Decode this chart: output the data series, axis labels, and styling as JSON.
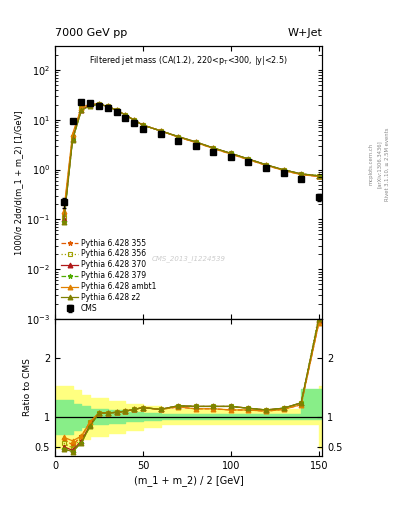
{
  "title_top": "7000 GeV pp",
  "title_right": "W+Jet",
  "plot_title": "Filtered jet mass (CA(1.2), 220<p$_T$<300, |y|<2.5)",
  "xlabel": "(m_1 + m_2) / 2 [GeV]",
  "ylabel_main": "1000/σ 2dσ/d(m_1 + m_2) [1/GeV]",
  "ylabel_ratio": "Ratio to CMS",
  "watermark": "CMS_2013_I1224539",
  "right_label": "Rivet 3.1.10, ≥ 2.5M events",
  "arxiv_label": "[arXiv:1306.3436]",
  "mcplots_label": "mcplots.cern.ch",
  "x_cms": [
    5,
    10,
    15,
    20,
    25,
    30,
    35,
    40,
    45,
    50,
    60,
    70,
    80,
    90,
    100,
    110,
    120,
    130,
    140,
    150
  ],
  "y_cms": [
    0.22,
    9.5,
    23,
    22,
    19,
    17,
    14,
    11,
    8.5,
    6.5,
    5.2,
    3.8,
    3.0,
    2.3,
    1.8,
    1.4,
    1.1,
    0.85,
    0.65,
    0.28
  ],
  "y_cms_err": [
    0.05,
    0.8,
    1.5,
    1.4,
    1.2,
    1.0,
    0.9,
    0.7,
    0.6,
    0.5,
    0.4,
    0.3,
    0.25,
    0.2,
    0.16,
    0.13,
    0.1,
    0.08,
    0.07,
    0.05
  ],
  "x_mc": [
    5,
    10,
    15,
    20,
    25,
    30,
    35,
    40,
    45,
    50,
    60,
    70,
    80,
    90,
    100,
    110,
    120,
    130,
    140,
    150
  ],
  "y_355": [
    0.13,
    4.8,
    17.5,
    20.5,
    20.5,
    18.5,
    15.5,
    12.5,
    9.8,
    7.8,
    6.0,
    4.5,
    3.5,
    2.65,
    2.05,
    1.58,
    1.22,
    0.96,
    0.79,
    0.73
  ],
  "y_356": [
    0.11,
    4.5,
    17.0,
    20.5,
    20.5,
    18.5,
    15.5,
    12.5,
    9.8,
    7.8,
    6.0,
    4.6,
    3.6,
    2.72,
    2.12,
    1.63,
    1.25,
    0.99,
    0.82,
    0.76
  ],
  "y_370": [
    0.1,
    4.2,
    16.0,
    19.5,
    20.5,
    18.5,
    15.5,
    12.5,
    9.8,
    7.8,
    6.0,
    4.6,
    3.6,
    2.72,
    2.12,
    1.63,
    1.25,
    0.99,
    0.82,
    0.74
  ],
  "y_379": [
    0.09,
    4.0,
    15.5,
    19.0,
    20.5,
    18.5,
    15.5,
    12.5,
    9.8,
    7.8,
    6.0,
    4.6,
    3.6,
    2.72,
    2.12,
    1.63,
    1.25,
    0.99,
    0.82,
    0.75
  ],
  "y_ambt1": [
    0.15,
    5.2,
    17.5,
    20.5,
    20.5,
    18.5,
    15.5,
    12.5,
    9.8,
    7.8,
    6.0,
    4.5,
    3.5,
    2.65,
    2.05,
    1.58,
    1.22,
    0.96,
    0.79,
    0.73
  ],
  "y_z2": [
    0.09,
    4.0,
    15.5,
    19.0,
    20.5,
    18.5,
    15.5,
    12.5,
    9.8,
    7.8,
    6.0,
    4.6,
    3.6,
    2.72,
    2.12,
    1.63,
    1.25,
    0.99,
    0.82,
    0.75
  ],
  "ratio_355": [
    0.63,
    0.53,
    0.68,
    0.92,
    1.07,
    1.07,
    1.08,
    1.1,
    1.13,
    1.16,
    1.13,
    1.17,
    1.14,
    1.14,
    1.12,
    1.12,
    1.1,
    1.13,
    1.21,
    2.58
  ],
  "ratio_356": [
    0.56,
    0.48,
    0.65,
    0.92,
    1.07,
    1.07,
    1.08,
    1.1,
    1.13,
    1.16,
    1.13,
    1.19,
    1.18,
    1.18,
    1.18,
    1.15,
    1.12,
    1.15,
    1.24,
    2.7
  ],
  "ratio_370": [
    0.5,
    0.44,
    0.6,
    0.87,
    1.07,
    1.07,
    1.08,
    1.1,
    1.13,
    1.16,
    1.13,
    1.19,
    1.18,
    1.18,
    1.18,
    1.15,
    1.12,
    1.15,
    1.24,
    2.63
  ],
  "ratio_379": [
    0.46,
    0.42,
    0.57,
    0.85,
    1.07,
    1.07,
    1.08,
    1.1,
    1.13,
    1.16,
    1.13,
    1.19,
    1.18,
    1.18,
    1.18,
    1.15,
    1.12,
    1.15,
    1.24,
    2.65
  ],
  "ratio_ambt1": [
    0.66,
    0.6,
    0.68,
    0.92,
    1.07,
    1.07,
    1.08,
    1.1,
    1.13,
    1.16,
    1.13,
    1.17,
    1.14,
    1.14,
    1.12,
    1.12,
    1.1,
    1.13,
    1.21,
    2.58
  ],
  "ratio_z2": [
    0.46,
    0.42,
    0.57,
    0.85,
    1.07,
    1.07,
    1.08,
    1.1,
    1.13,
    1.16,
    1.13,
    1.19,
    1.18,
    1.18,
    1.18,
    1.15,
    1.12,
    1.15,
    1.24,
    2.65
  ],
  "band_x": [
    0,
    5,
    10,
    15,
    20,
    30,
    40,
    50,
    60,
    70,
    80,
    90,
    100,
    110,
    120,
    130,
    140,
    150,
    155
  ],
  "band_green_lo": [
    0.72,
    0.72,
    0.78,
    0.84,
    0.88,
    0.9,
    0.93,
    0.95,
    0.96,
    0.96,
    0.96,
    0.96,
    0.96,
    0.96,
    0.96,
    0.96,
    0.96,
    0.96,
    0.96
  ],
  "band_green_hi": [
    1.28,
    1.28,
    1.22,
    1.18,
    1.14,
    1.12,
    1.09,
    1.07,
    1.06,
    1.06,
    1.06,
    1.06,
    1.06,
    1.06,
    1.06,
    1.06,
    1.48,
    1.48,
    1.48
  ],
  "band_yellow_lo": [
    0.48,
    0.48,
    0.55,
    0.63,
    0.68,
    0.73,
    0.78,
    0.83,
    0.88,
    0.88,
    0.88,
    0.88,
    0.88,
    0.88,
    0.88,
    0.88,
    0.88,
    0.48,
    0.48
  ],
  "band_yellow_hi": [
    1.52,
    1.52,
    1.46,
    1.38,
    1.32,
    1.27,
    1.22,
    1.18,
    1.14,
    1.14,
    1.14,
    1.14,
    1.14,
    1.14,
    1.14,
    1.14,
    1.14,
    1.52,
    1.52
  ],
  "color_355": "#e05a00",
  "color_356": "#a0a000",
  "color_370": "#b01818",
  "color_379": "#50aa00",
  "color_ambt1": "#e08000",
  "color_z2": "#808000",
  "marker_355": "*",
  "marker_356": "s",
  "marker_370": "^",
  "marker_379": "*",
  "marker_ambt1": "^",
  "marker_z2": "^",
  "ls_355": "--",
  "ls_356": ":",
  "ls_370": "-",
  "ls_379": "--",
  "ls_ambt1": "-",
  "ls_z2": "-",
  "ylim_main": [
    0.001,
    300
  ],
  "ylim_ratio": [
    0.35,
    2.65
  ],
  "xlim": [
    0,
    152
  ]
}
